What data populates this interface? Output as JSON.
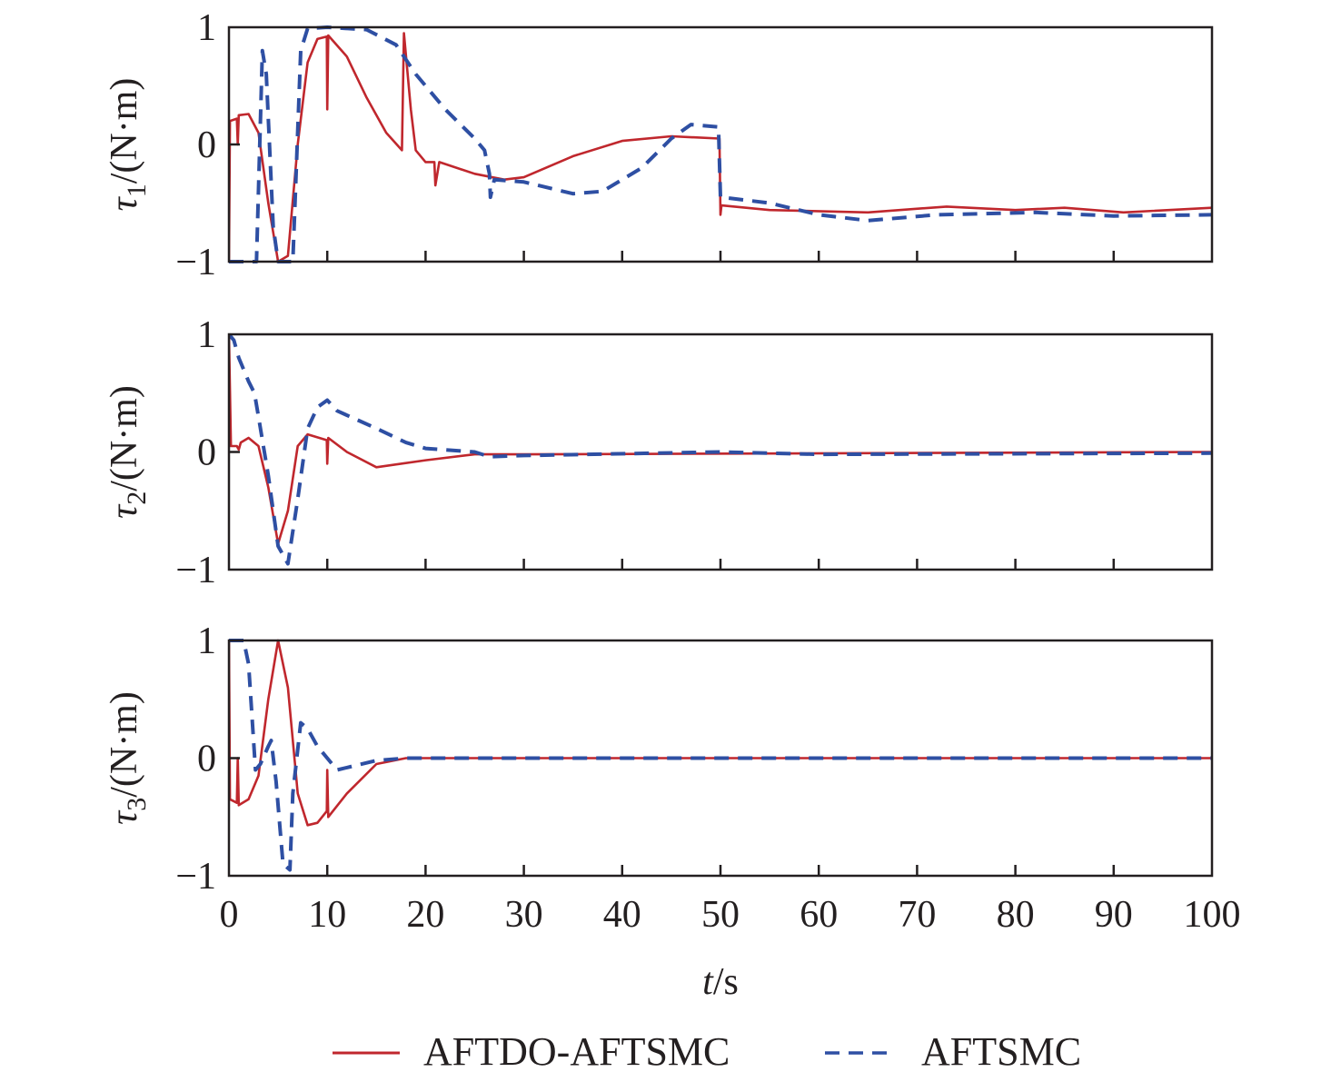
{
  "chart_data": [
    {
      "type": "line",
      "ylabel_symbol": "τ",
      "ylabel_sub": "1",
      "ylabel_unit": "/(N·m)",
      "ylim": [
        -1,
        1
      ],
      "xlim": [
        0,
        100
      ],
      "yticks": [
        "1",
        "0",
        "−1"
      ],
      "series": [
        {
          "name": "AFTDO-AFTSMC",
          "color": "#c0272d",
          "style": "solid",
          "points": [
            [
              0,
              -1
            ],
            [
              0.1,
              0.2
            ],
            [
              0.8,
              0.22
            ],
            [
              0.9,
              0
            ],
            [
              1,
              0.25
            ],
            [
              2,
              0.26
            ],
            [
              3,
              0.1
            ],
            [
              4,
              -0.5
            ],
            [
              5,
              -1
            ],
            [
              6,
              -0.95
            ],
            [
              7,
              0
            ],
            [
              8,
              0.7
            ],
            [
              9,
              0.9
            ],
            [
              9.95,
              0.92
            ],
            [
              10,
              0.3
            ],
            [
              10.1,
              0.93
            ],
            [
              12,
              0.75
            ],
            [
              14,
              0.4
            ],
            [
              16,
              0.1
            ],
            [
              17.6,
              -0.05
            ],
            [
              17.8,
              0.95
            ],
            [
              18.5,
              0.3
            ],
            [
              19,
              -0.05
            ],
            [
              20,
              -0.15
            ],
            [
              20.9,
              -0.15
            ],
            [
              21,
              -0.35
            ],
            [
              21.4,
              -0.15
            ],
            [
              25,
              -0.25
            ],
            [
              28,
              -0.3
            ],
            [
              30,
              -0.28
            ],
            [
              35,
              -0.1
            ],
            [
              40,
              0.03
            ],
            [
              45,
              0.07
            ],
            [
              49.9,
              0.05
            ],
            [
              50,
              -0.6
            ],
            [
              50.1,
              -0.52
            ],
            [
              55,
              -0.56
            ],
            [
              65,
              -0.58
            ],
            [
              73,
              -0.53
            ],
            [
              80,
              -0.56
            ],
            [
              85,
              -0.54
            ],
            [
              91,
              -0.58
            ],
            [
              100,
              -0.54
            ]
          ]
        },
        {
          "name": "AFTSMC",
          "color": "#2e4fa3",
          "style": "dashed",
          "points": [
            [
              0,
              -1
            ],
            [
              2.8,
              -1
            ],
            [
              3.4,
              0.8
            ],
            [
              3.8,
              0.6
            ],
            [
              4.5,
              -0.7
            ],
            [
              5,
              -1
            ],
            [
              6.5,
              -1
            ],
            [
              7.3,
              0.8
            ],
            [
              8,
              0.99
            ],
            [
              10,
              1
            ],
            [
              14,
              0.98
            ],
            [
              17,
              0.85
            ],
            [
              19,
              0.6
            ],
            [
              22,
              0.3
            ],
            [
              25,
              0.05
            ],
            [
              26,
              -0.05
            ],
            [
              26.5,
              -0.25
            ],
            [
              26.6,
              -0.45
            ],
            [
              27,
              -0.3
            ],
            [
              30,
              -0.32
            ],
            [
              35,
              -0.42
            ],
            [
              38,
              -0.4
            ],
            [
              42,
              -0.2
            ],
            [
              45,
              0.05
            ],
            [
              47,
              0.17
            ],
            [
              49.8,
              0.15
            ],
            [
              50,
              -0.45
            ],
            [
              51,
              -0.46
            ],
            [
              55,
              -0.5
            ],
            [
              60,
              -0.6
            ],
            [
              65,
              -0.65
            ],
            [
              72,
              -0.6
            ],
            [
              82,
              -0.58
            ],
            [
              90,
              -0.61
            ],
            [
              100,
              -0.6
            ]
          ]
        }
      ]
    },
    {
      "type": "line",
      "ylabel_symbol": "τ",
      "ylabel_sub": "2",
      "ylabel_unit": "/(N·m)",
      "ylim": [
        -1,
        1
      ],
      "xlim": [
        0,
        100
      ],
      "yticks": [
        "1",
        "0",
        "−1"
      ],
      "series": [
        {
          "name": "AFTDO-AFTSMC",
          "color": "#c0272d",
          "style": "solid",
          "points": [
            [
              0,
              1
            ],
            [
              0.2,
              0.05
            ],
            [
              0.8,
              0.05
            ],
            [
              1,
              0.02
            ],
            [
              1.2,
              0.08
            ],
            [
              2,
              0.12
            ],
            [
              3,
              0.05
            ],
            [
              4,
              -0.3
            ],
            [
              5,
              -0.78
            ],
            [
              6,
              -0.5
            ],
            [
              7,
              0.05
            ],
            [
              8,
              0.15
            ],
            [
              9.95,
              0.1
            ],
            [
              10,
              -0.1
            ],
            [
              10.1,
              0.12
            ],
            [
              12,
              0
            ],
            [
              15,
              -0.13
            ],
            [
              20,
              -0.07
            ],
            [
              25,
              -0.02
            ],
            [
              30,
              -0.02
            ],
            [
              100,
              0
            ]
          ]
        },
        {
          "name": "AFTSMC",
          "color": "#2e4fa3",
          "style": "dashed",
          "points": [
            [
              0,
              1
            ],
            [
              0.5,
              0.95
            ],
            [
              1,
              0.8
            ],
            [
              2,
              0.6
            ],
            [
              2.6,
              0.5
            ],
            [
              3,
              0.3
            ],
            [
              4,
              -0.2
            ],
            [
              5,
              -0.8
            ],
            [
              6,
              -0.95
            ],
            [
              7,
              -0.4
            ],
            [
              8,
              0.2
            ],
            [
              9,
              0.38
            ],
            [
              10,
              0.44
            ],
            [
              11,
              0.35
            ],
            [
              15,
              0.2
            ],
            [
              18,
              0.08
            ],
            [
              20,
              0.03
            ],
            [
              25,
              0
            ],
            [
              26.5,
              -0.04
            ],
            [
              30,
              -0.03
            ],
            [
              50,
              0
            ],
            [
              60,
              -0.02
            ],
            [
              100,
              -0.01
            ]
          ]
        }
      ]
    },
    {
      "type": "line",
      "ylabel_symbol": "τ",
      "ylabel_sub": "3",
      "ylabel_unit": "/(N·m)",
      "ylim": [
        -1,
        1
      ],
      "xlim": [
        0,
        100
      ],
      "yticks": [
        "1",
        "0",
        "−1"
      ],
      "xticks": [
        "0",
        "10",
        "20",
        "30",
        "40",
        "50",
        "60",
        "70",
        "80",
        "90",
        "100"
      ],
      "xlabel_italic": "t",
      "xlabel_unit": "/s",
      "series": [
        {
          "name": "AFTDO-AFTSMC",
          "color": "#c0272d",
          "style": "solid",
          "points": [
            [
              0,
              1
            ],
            [
              0.1,
              -0.35
            ],
            [
              0.8,
              -0.38
            ],
            [
              0.9,
              0
            ],
            [
              1,
              -0.4
            ],
            [
              2,
              -0.35
            ],
            [
              3,
              -0.15
            ],
            [
              4,
              0.5
            ],
            [
              5,
              1
            ],
            [
              6,
              0.6
            ],
            [
              7,
              -0.3
            ],
            [
              8,
              -0.57
            ],
            [
              9,
              -0.55
            ],
            [
              9.95,
              -0.45
            ],
            [
              10,
              -0.1
            ],
            [
              10.1,
              -0.5
            ],
            [
              12,
              -0.3
            ],
            [
              15,
              -0.05
            ],
            [
              18,
              0
            ],
            [
              100,
              0
            ]
          ]
        },
        {
          "name": "AFTSMC",
          "color": "#2e4fa3",
          "style": "dashed",
          "points": [
            [
              0,
              1
            ],
            [
              1.5,
              1
            ],
            [
              2,
              0.8
            ],
            [
              2.7,
              -0.1
            ],
            [
              3.2,
              -0.05
            ],
            [
              4,
              0.1
            ],
            [
              4.3,
              0.15
            ],
            [
              4.8,
              -0.2
            ],
            [
              5.5,
              -0.9
            ],
            [
              6.2,
              -0.95
            ],
            [
              6.5,
              -0.3
            ],
            [
              7.3,
              0.3
            ],
            [
              8,
              0.25
            ],
            [
              9,
              0.1
            ],
            [
              10,
              0
            ],
            [
              11,
              -0.1
            ],
            [
              12,
              -0.08
            ],
            [
              15,
              -0.02
            ],
            [
              18,
              0
            ],
            [
              100,
              0
            ]
          ]
        }
      ]
    }
  ],
  "legend": {
    "placement": "bottom",
    "items": [
      {
        "label": "AFTDO-AFTSMC",
        "color": "#c0272d",
        "style": "solid"
      },
      {
        "label": "AFTSMC",
        "color": "#2e4fa3",
        "style": "dashed"
      }
    ]
  }
}
